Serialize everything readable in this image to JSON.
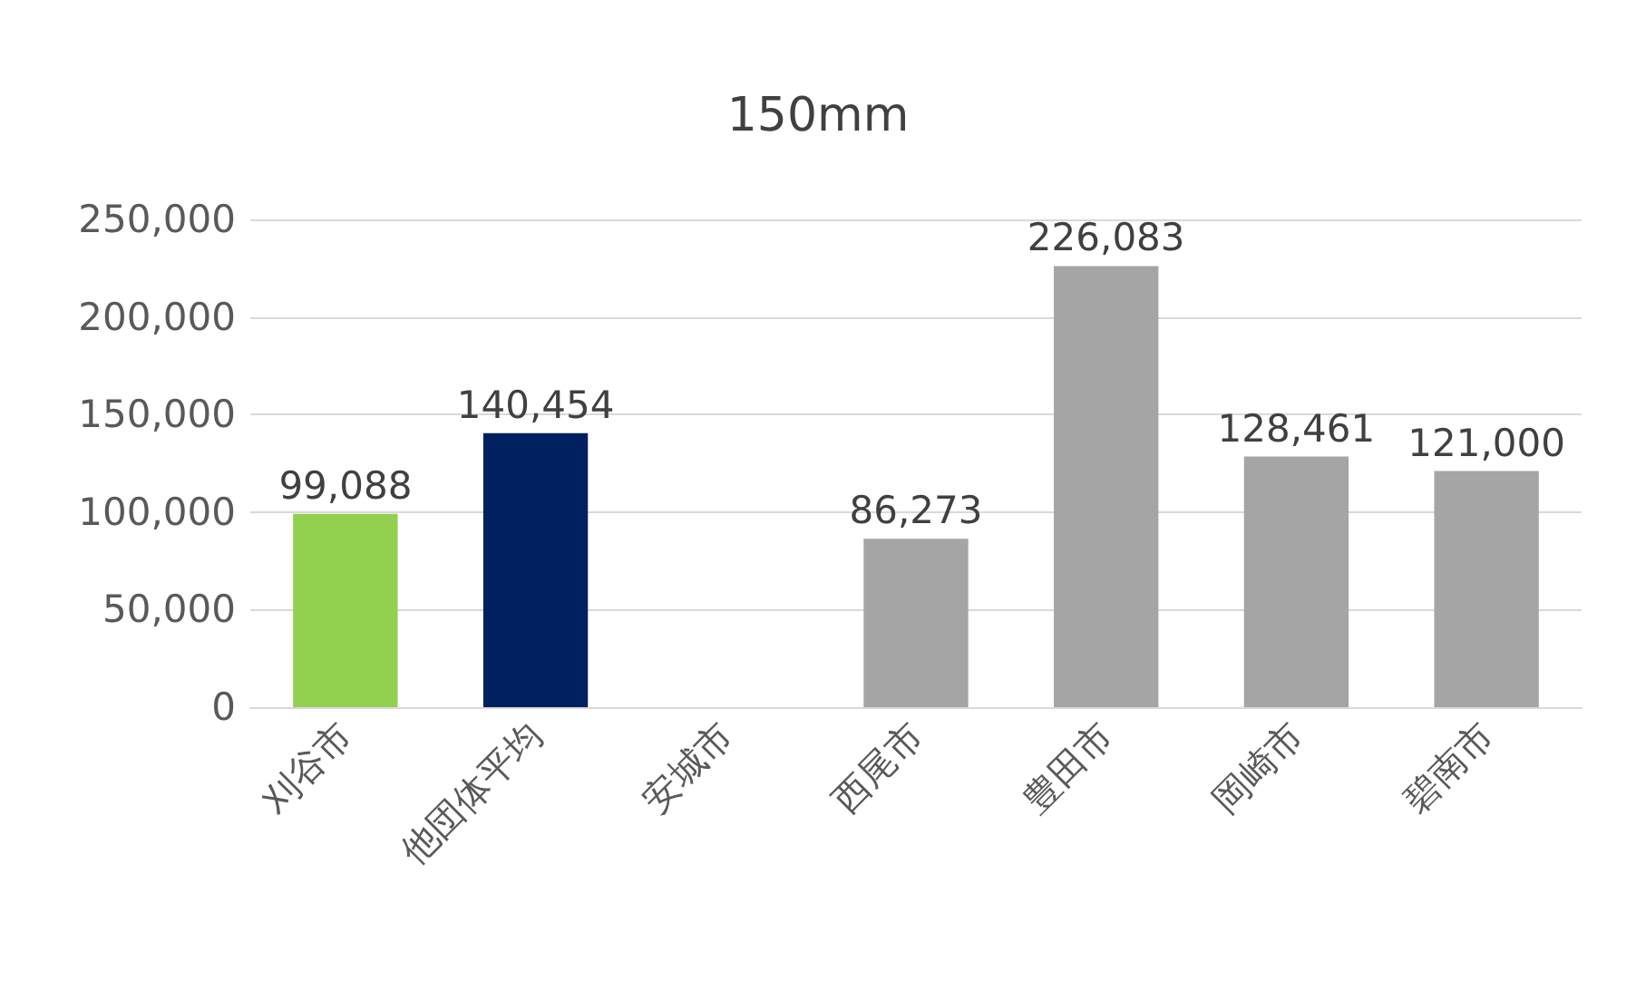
{
  "chart_data": {
    "type": "bar",
    "title": "150mm",
    "categories": [
      "刈谷市",
      "他団体平均",
      "安城市",
      "西尾市",
      "豊田市",
      "岡崎市",
      "碧南市"
    ],
    "values": [
      99088,
      140454,
      null,
      86273,
      226083,
      128461,
      121000
    ],
    "value_labels": [
      "99,088",
      "140,454",
      null,
      "86,273",
      "226,083",
      "128,461",
      "121,000"
    ],
    "colors": [
      "#92d050",
      "#002060",
      "#a5a5a5",
      "#a5a5a5",
      "#a5a5a5",
      "#a5a5a5",
      "#a5a5a5"
    ],
    "ylim": [
      0,
      250000
    ],
    "yticks": [
      0,
      {
        "value": 50000,
        "label": "50,000"
      },
      {
        "value": 100000,
        "label": "100,000"
      },
      {
        "value": 150000,
        "label": "150,000"
      },
      {
        "value": 200000,
        "label": "200,000"
      },
      {
        "value": 250000,
        "label": "250,000"
      }
    ],
    "grid": "y"
  }
}
